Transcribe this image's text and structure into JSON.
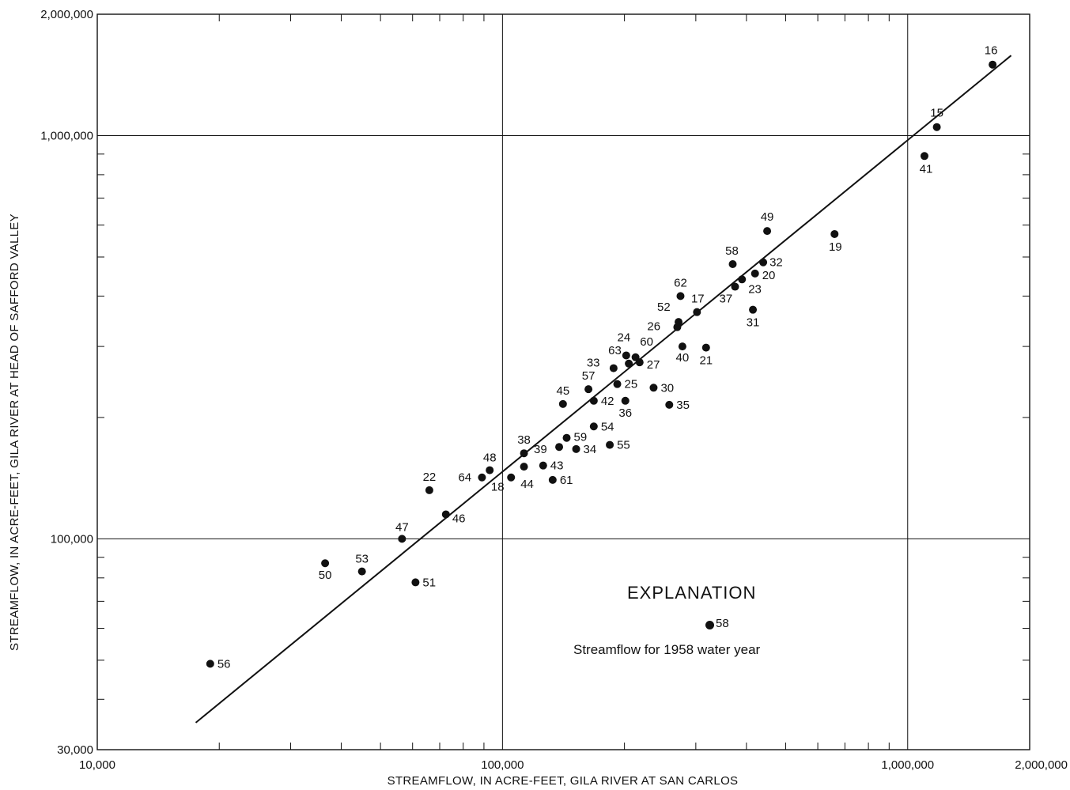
{
  "chart_data": {
    "type": "scatter",
    "xlabel": "STREAMFLOW, IN ACRE-FEET, GILA RIVER AT SAN CARLOS",
    "ylabel": "STREAMFLOW, IN ACRE-FEET, GILA RIVER AT HEAD OF SAFFORD VALLEY",
    "xscale": "log",
    "yscale": "log",
    "xlim": [
      10000,
      2000000
    ],
    "ylim": [
      30000,
      2000000
    ],
    "x_ticks": [
      {
        "value": 10000,
        "label": "10,000"
      },
      {
        "value": 100000,
        "label": "100,000"
      },
      {
        "value": 1000000,
        "label": "1,000,000"
      },
      {
        "value": 2000000,
        "label": "2,000,000"
      }
    ],
    "y_ticks": [
      {
        "value": 30000,
        "label": "30,000"
      },
      {
        "value": 100000,
        "label": "100,000"
      },
      {
        "value": 1000000,
        "label": "1,000,000"
      },
      {
        "value": 2000000,
        "label": "2,000,000"
      }
    ],
    "grid": "major decades",
    "trend_line": {
      "x": [
        17500,
        1800000
      ],
      "y": [
        35000,
        1580000
      ]
    },
    "points": [
      {
        "label": "16",
        "x": 1620000,
        "y": 1500000
      },
      {
        "label": "15",
        "x": 1180000,
        "y": 1050000
      },
      {
        "label": "41",
        "x": 1100000,
        "y": 890000
      },
      {
        "label": "49",
        "x": 450000,
        "y": 580000
      },
      {
        "label": "19",
        "x": 660000,
        "y": 570000
      },
      {
        "label": "58",
        "x": 370000,
        "y": 480000
      },
      {
        "label": "32",
        "x": 440000,
        "y": 485000
      },
      {
        "label": "20",
        "x": 420000,
        "y": 455000
      },
      {
        "label": "23",
        "x": 390000,
        "y": 440000
      },
      {
        "label": "37",
        "x": 375000,
        "y": 422000
      },
      {
        "label": "62",
        "x": 275000,
        "y": 400000
      },
      {
        "label": "17",
        "x": 302000,
        "y": 365000
      },
      {
        "label": "31",
        "x": 415000,
        "y": 370000
      },
      {
        "label": "52",
        "x": 272000,
        "y": 345000
      },
      {
        "label": "26",
        "x": 270000,
        "y": 335000
      },
      {
        "label": "40",
        "x": 278000,
        "y": 300000
      },
      {
        "label": "21",
        "x": 318000,
        "y": 298000
      },
      {
        "label": "24",
        "x": 202000,
        "y": 285000
      },
      {
        "label": "60",
        "x": 213000,
        "y": 282000
      },
      {
        "label": "63",
        "x": 205000,
        "y": 272000
      },
      {
        "label": "27",
        "x": 218000,
        "y": 274000
      },
      {
        "label": "33",
        "x": 188000,
        "y": 265000
      },
      {
        "label": "25",
        "x": 192000,
        "y": 242000
      },
      {
        "label": "57",
        "x": 163000,
        "y": 235000
      },
      {
        "label": "30",
        "x": 236000,
        "y": 237000
      },
      {
        "label": "42",
        "x": 168000,
        "y": 220000
      },
      {
        "label": "36",
        "x": 201000,
        "y": 220000
      },
      {
        "label": "35",
        "x": 258000,
        "y": 215000
      },
      {
        "label": "45",
        "x": 141000,
        "y": 216000
      },
      {
        "label": "54",
        "x": 168000,
        "y": 190000
      },
      {
        "label": "59",
        "x": 144000,
        "y": 178000
      },
      {
        "label": "38",
        "x": 113000,
        "y": 163000
      },
      {
        "label": "39",
        "x": 138000,
        "y": 169000
      },
      {
        "label": "34",
        "x": 152000,
        "y": 167000
      },
      {
        "label": "55",
        "x": 184000,
        "y": 171000
      },
      {
        "label": "48",
        "x": 93000,
        "y": 148000
      },
      {
        "label": "64",
        "x": 89000,
        "y": 142000
      },
      {
        "label": "43",
        "x": 126000,
        "y": 152000
      },
      {
        "label": "44",
        "x": 113000,
        "y": 151000
      },
      {
        "label": "18",
        "x": 105000,
        "y": 142000
      },
      {
        "label": "61",
        "x": 133000,
        "y": 140000
      },
      {
        "label": "22",
        "x": 66000,
        "y": 132000
      },
      {
        "label": "46",
        "x": 72500,
        "y": 115000
      },
      {
        "label": "47",
        "x": 56500,
        "y": 100000
      },
      {
        "label": "50",
        "x": 36500,
        "y": 87000
      },
      {
        "label": "53",
        "x": 45000,
        "y": 83000
      },
      {
        "label": "51",
        "x": 61000,
        "y": 78000
      },
      {
        "label": "56",
        "x": 19000,
        "y": 49000
      }
    ],
    "legend": {
      "title": "EXPLANATION",
      "marker_label": "58",
      "caption": "Streamflow for 1958 water year"
    }
  }
}
